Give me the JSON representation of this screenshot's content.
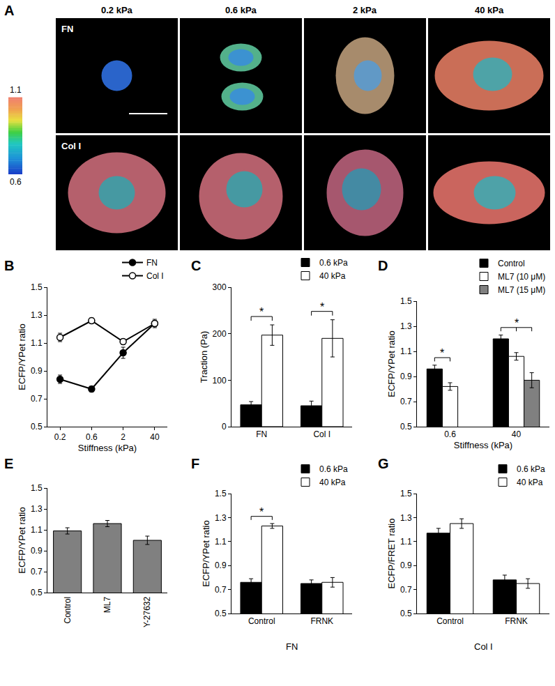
{
  "chart_data": [
    {
      "panel": "A",
      "type": "image_grid",
      "columns": [
        "0.2 kPa",
        "0.6 kPa",
        "2 kPa",
        "40 kPa"
      ],
      "rows": [
        "FN",
        "Col I"
      ],
      "colorbar": {
        "lim": [
          0.6,
          1.1
        ],
        "ticks": [
          0.6,
          1.1
        ]
      }
    },
    {
      "panel": "B",
      "type": "line",
      "categories": [
        "0.2",
        "0.6",
        "2",
        "40"
      ],
      "x_label": "Stiffness (kPa)",
      "y_label": "ECFP/YPet ratio",
      "ylim": [
        0.5,
        1.5
      ],
      "yticks": [
        0.5,
        0.7,
        0.9,
        1.1,
        1.3,
        1.5
      ],
      "legend": "top right",
      "series": [
        {
          "name": "FN",
          "color": "#000000",
          "marker": "filled",
          "values": [
            0.84,
            0.77,
            1.03,
            1.24
          ],
          "errors": [
            0.03,
            0.02,
            0.04,
            0.02
          ]
        },
        {
          "name": "Col I",
          "color": "#000000",
          "marker": "open",
          "values": [
            1.14,
            1.26,
            1.11,
            1.24
          ],
          "errors": [
            0.03,
            0.02,
            0.02,
            0.03
          ]
        }
      ]
    },
    {
      "panel": "C",
      "type": "bar",
      "categories": [
        "FN",
        "Col I"
      ],
      "y_label": "Traction (Pa)",
      "ylim": [
        0,
        300
      ],
      "yticks": [
        0,
        100,
        200,
        300
      ],
      "legend": "top right",
      "series": [
        {
          "name": "0.6 kPa",
          "color": "#000000",
          "values": [
            47,
            45
          ],
          "errors": [
            7,
            10
          ]
        },
        {
          "name": "40 kPa",
          "color": "#ffffff",
          "values": [
            197,
            190
          ],
          "errors": [
            22,
            40
          ]
        }
      ],
      "significance": [
        {
          "category": "FN",
          "series": [
            "0.6 kPa",
            "40 kPa"
          ],
          "text": "*"
        },
        {
          "category": "Col I",
          "series": [
            "0.6 kPa",
            "40 kPa"
          ],
          "text": "*"
        }
      ]
    },
    {
      "panel": "D",
      "type": "bar",
      "categories": [
        "0.6",
        "40"
      ],
      "x_label": "Stiffness (kPa)",
      "y_label": "ECFP/YPet ratio",
      "ylim": [
        0.5,
        1.5
      ],
      "yticks": [
        0.5,
        0.7,
        0.9,
        1.1,
        1.3,
        1.5
      ],
      "legend": "top right",
      "series": [
        {
          "name": "Control",
          "color": "#000000",
          "values": [
            0.96,
            1.2
          ],
          "errors": [
            0.03,
            0.03
          ]
        },
        {
          "name": "ML7 (10 μM)",
          "color": "#ffffff",
          "values": [
            0.82,
            1.06
          ],
          "errors": [
            0.03,
            0.03
          ]
        },
        {
          "name": "ML7 (15 μM)",
          "color": "#808080",
          "values": [
            null,
            0.87
          ],
          "errors": [
            null,
            0.06
          ]
        }
      ],
      "significance": [
        {
          "category": "0.6",
          "series": [
            "Control",
            "ML7 (10 μM)"
          ],
          "text": "*"
        },
        {
          "category": "40",
          "series": [
            "Control",
            "ML7 (10 μM)",
            "ML7 (15 μM)"
          ],
          "text": "*"
        }
      ]
    },
    {
      "panel": "E",
      "type": "bar",
      "categories": [
        "Control",
        "ML7",
        "Y-27632"
      ],
      "y_label": "ECFP/YPet ratio",
      "ylim": [
        0.5,
        1.5
      ],
      "yticks": [
        0.5,
        0.7,
        0.9,
        1.1,
        1.3,
        1.5
      ],
      "color": "#808080",
      "values": [
        1.09,
        1.16,
        1.0
      ],
      "errors": [
        0.03,
        0.03,
        0.04
      ]
    },
    {
      "panel": "F",
      "type": "bar",
      "categories": [
        "Control",
        "FRNK"
      ],
      "group_label": "FN",
      "y_label": "ECFP/YPet ratio",
      "ylim": [
        0.5,
        1.5
      ],
      "yticks": [
        0.5,
        0.7,
        0.9,
        1.1,
        1.3,
        1.5
      ],
      "legend": "top right",
      "series": [
        {
          "name": "0.6 kPa",
          "color": "#000000",
          "values": [
            0.76,
            0.75
          ],
          "errors": [
            0.03,
            0.03
          ]
        },
        {
          "name": "40 kPa",
          "color": "#ffffff",
          "values": [
            1.23,
            0.76
          ],
          "errors": [
            0.02,
            0.04
          ]
        }
      ],
      "significance": [
        {
          "category": "Control",
          "series": [
            "0.6 kPa",
            "40 kPa"
          ],
          "text": "*"
        }
      ]
    },
    {
      "panel": "G",
      "type": "bar",
      "categories": [
        "Control",
        "FRNK"
      ],
      "group_label": "Col I",
      "y_label": "ECFP/FRET ratio",
      "ylim": [
        0.5,
        1.5
      ],
      "yticks": [
        0.5,
        0.7,
        0.9,
        1.1,
        1.3,
        1.5
      ],
      "legend": "top right",
      "series": [
        {
          "name": "0.6 kPa",
          "color": "#000000",
          "values": [
            1.17,
            0.78
          ],
          "errors": [
            0.04,
            0.04
          ]
        },
        {
          "name": "40 kPa",
          "color": "#ffffff",
          "values": [
            1.25,
            0.75
          ],
          "errors": [
            0.04,
            0.04
          ]
        }
      ]
    }
  ]
}
